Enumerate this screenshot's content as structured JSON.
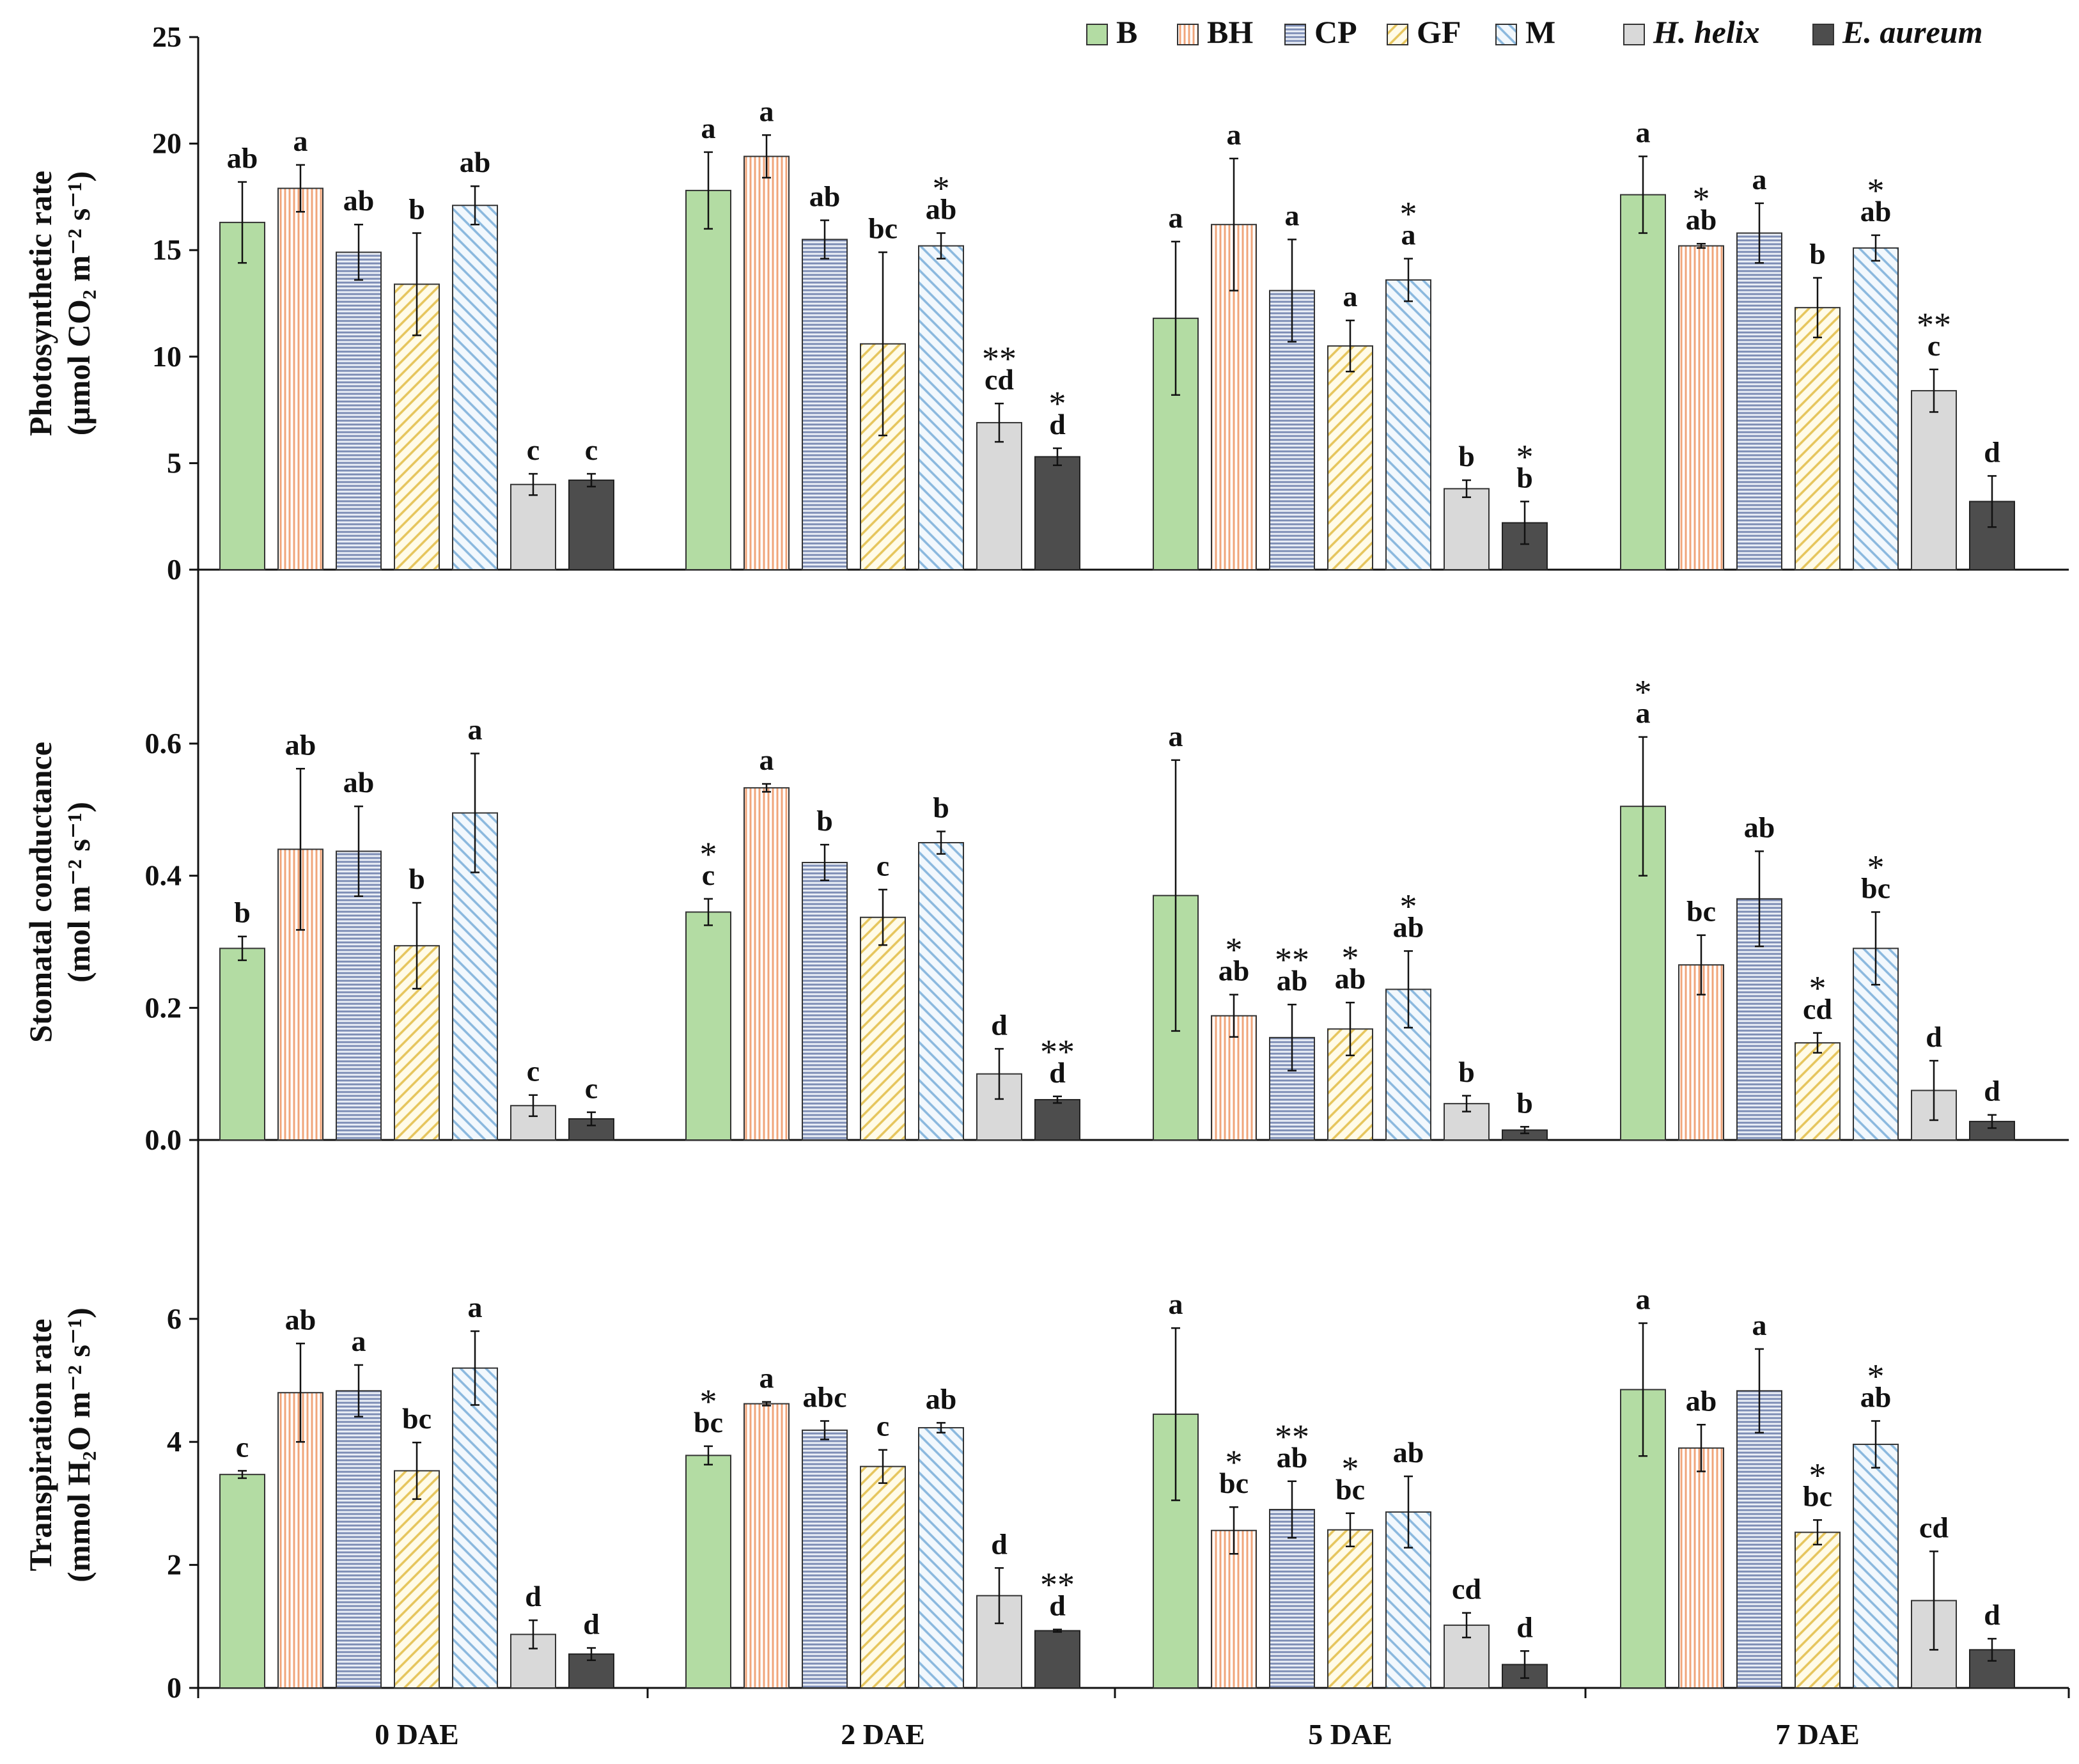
{
  "chart_data": {
    "type": "bar",
    "categories": [
      "0 DAE",
      "2 DAE",
      "5 DAE",
      "7 DAE"
    ],
    "legend": {
      "position": "top-right",
      "entries": [
        {
          "key": "B",
          "label": "B",
          "italic": false
        },
        {
          "key": "BH",
          "label": "BH",
          "italic": false
        },
        {
          "key": "CP",
          "label": "CP",
          "italic": false
        },
        {
          "key": "GF",
          "label": "GF",
          "italic": false
        },
        {
          "key": "M",
          "label": "M",
          "italic": false
        },
        {
          "key": "Hh",
          "label": "H. helix",
          "italic": true
        },
        {
          "key": "Ea",
          "label": "E. aureum",
          "italic": true
        }
      ]
    },
    "series_colors": {
      "B": "#b3dca3",
      "BH": "#f7c5a6",
      "CP": "#a9b4cf",
      "GF": "#f2d98c",
      "M": "#a8cbe6",
      "Hh": "#d9d9d9",
      "Ea": "#4d4d4d"
    },
    "panels": [
      {
        "name": "photosynthetic",
        "ylabel_line1": "Photosynthetic rate",
        "ylabel_line2": "(μmol CO₂ m⁻² s⁻¹)",
        "ylim": [
          0,
          25
        ],
        "yticks": [
          0,
          5,
          10,
          15,
          20,
          25
        ],
        "decimals": 0,
        "series": [
          {
            "key": "B",
            "values": [
              16.3,
              17.8,
              11.8,
              17.6
            ],
            "errors": [
              1.9,
              1.8,
              3.6,
              1.8
            ],
            "letters": [
              "ab",
              "a",
              "a",
              "a"
            ],
            "stars": [
              "",
              "",
              "",
              ""
            ]
          },
          {
            "key": "BH",
            "values": [
              17.9,
              19.4,
              16.2,
              15.2
            ],
            "errors": [
              1.1,
              1.0,
              3.1,
              0.1
            ],
            "letters": [
              "a",
              "a",
              "a",
              "ab"
            ],
            "stars": [
              "",
              "",
              "",
              "*"
            ]
          },
          {
            "key": "CP",
            "values": [
              14.9,
              15.5,
              13.1,
              15.8
            ],
            "errors": [
              1.3,
              0.9,
              2.4,
              1.4
            ],
            "letters": [
              "ab",
              "ab",
              "a",
              "a"
            ],
            "stars": [
              "",
              "",
              "",
              ""
            ]
          },
          {
            "key": "GF",
            "values": [
              13.4,
              10.6,
              10.5,
              12.3
            ],
            "errors": [
              2.4,
              4.3,
              1.2,
              1.4
            ],
            "letters": [
              "b",
              "bc",
              "a",
              "b"
            ],
            "stars": [
              "",
              "",
              "",
              ""
            ]
          },
          {
            "key": "M",
            "values": [
              17.1,
              15.2,
              13.6,
              15.1
            ],
            "errors": [
              0.9,
              0.6,
              1.0,
              0.6
            ],
            "letters": [
              "ab",
              "ab",
              "a",
              "ab"
            ],
            "stars": [
              "",
              "*",
              "*",
              "*"
            ]
          },
          {
            "key": "Hh",
            "values": [
              4.0,
              6.9,
              3.8,
              8.4
            ],
            "errors": [
              0.5,
              0.9,
              0.4,
              1.0
            ],
            "letters": [
              "c",
              "cd",
              "b",
              "c"
            ],
            "stars": [
              "",
              "**",
              "",
              "**"
            ]
          },
          {
            "key": "Ea",
            "values": [
              4.2,
              5.3,
              2.2,
              3.2
            ],
            "errors": [
              0.3,
              0.4,
              1.0,
              1.2
            ],
            "letters": [
              "c",
              "d",
              "b",
              "d"
            ],
            "stars": [
              "",
              "*",
              "*",
              ""
            ]
          }
        ]
      },
      {
        "name": "stomatal",
        "ylabel_line1": "Stomatal conductance",
        "ylabel_line2": "(mol m⁻² s⁻¹)",
        "ylim": [
          0,
          0.75
        ],
        "yticks": [
          0,
          0.2,
          0.4,
          0.6
        ],
        "decimals": 1,
        "series": [
          {
            "key": "B",
            "values": [
              0.29,
              0.345,
              0.37,
              0.505
            ],
            "errors": [
              0.018,
              0.02,
              0.205,
              0.105
            ],
            "letters": [
              "b",
              "c",
              "a",
              "a"
            ],
            "stars": [
              "",
              "*",
              "",
              "*"
            ]
          },
          {
            "key": "BH",
            "values": [
              0.44,
              0.533,
              0.188,
              0.265
            ],
            "errors": [
              0.122,
              0.006,
              0.032,
              0.045
            ],
            "letters": [
              "ab",
              "a",
              "ab",
              "bc"
            ],
            "stars": [
              "",
              "",
              "*",
              ""
            ]
          },
          {
            "key": "CP",
            "values": [
              0.437,
              0.42,
              0.155,
              0.365
            ],
            "errors": [
              0.068,
              0.027,
              0.05,
              0.072
            ],
            "letters": [
              "ab",
              "b",
              "ab",
              "ab"
            ],
            "stars": [
              "",
              "",
              "**",
              ""
            ]
          },
          {
            "key": "GF",
            "values": [
              0.294,
              0.337,
              0.168,
              0.147
            ],
            "errors": [
              0.065,
              0.042,
              0.04,
              0.015
            ],
            "letters": [
              "b",
              "c",
              "ab",
              "cd"
            ],
            "stars": [
              "",
              "",
              "*",
              "*"
            ]
          },
          {
            "key": "M",
            "values": [
              0.495,
              0.45,
              0.228,
              0.29
            ],
            "errors": [
              0.09,
              0.017,
              0.058,
              0.055
            ],
            "letters": [
              "a",
              "b",
              "ab",
              "bc"
            ],
            "stars": [
              "",
              "",
              "*",
              "*"
            ]
          },
          {
            "key": "Hh",
            "values": [
              0.052,
              0.1,
              0.055,
              0.075
            ],
            "errors": [
              0.016,
              0.038,
              0.012,
              0.045
            ],
            "letters": [
              "c",
              "d",
              "b",
              "d"
            ],
            "stars": [
              "",
              "",
              "",
              ""
            ]
          },
          {
            "key": "Ea",
            "values": [
              0.032,
              0.061,
              0.015,
              0.028
            ],
            "errors": [
              0.01,
              0.005,
              0.005,
              0.01
            ],
            "letters": [
              "c",
              "d",
              "b",
              "d"
            ],
            "stars": [
              "",
              "**",
              "",
              ""
            ]
          }
        ]
      },
      {
        "name": "transpiration",
        "ylabel_line1": "Transpiration rate",
        "ylabel_line2": "(mmol H₂O m⁻² s⁻¹)",
        "ylim": [
          0,
          7.9
        ],
        "yticks": [
          0,
          2,
          4,
          6
        ],
        "decimals": 0,
        "series": [
          {
            "key": "B",
            "values": [
              3.47,
              3.78,
              4.45,
              4.85
            ],
            "errors": [
              0.06,
              0.15,
              1.4,
              1.08
            ],
            "letters": [
              "c",
              "bc",
              "a",
              "a"
            ],
            "stars": [
              "",
              "*",
              "",
              ""
            ]
          },
          {
            "key": "BH",
            "values": [
              4.8,
              4.62,
              2.56,
              3.9
            ],
            "errors": [
              0.8,
              0.03,
              0.38,
              0.38
            ],
            "letters": [
              "ab",
              "a",
              "bc",
              "ab"
            ],
            "stars": [
              "",
              "",
              "*",
              ""
            ]
          },
          {
            "key": "CP",
            "values": [
              4.83,
              4.19,
              2.9,
              4.83
            ],
            "errors": [
              0.42,
              0.15,
              0.46,
              0.68
            ],
            "letters": [
              "a",
              "abc",
              "ab",
              "a"
            ],
            "stars": [
              "",
              "",
              "**",
              ""
            ]
          },
          {
            "key": "GF",
            "values": [
              3.53,
              3.6,
              2.57,
              2.53
            ],
            "errors": [
              0.46,
              0.27,
              0.27,
              0.2
            ],
            "letters": [
              "bc",
              "c",
              "bc",
              "bc"
            ],
            "stars": [
              "",
              "",
              "*",
              "*"
            ]
          },
          {
            "key": "M",
            "values": [
              5.2,
              4.23,
              2.86,
              3.96
            ],
            "errors": [
              0.6,
              0.08,
              0.58,
              0.38
            ],
            "letters": [
              "a",
              "ab",
              "ab",
              "ab"
            ],
            "stars": [
              "",
              "",
              "",
              "*"
            ]
          },
          {
            "key": "Hh",
            "values": [
              0.87,
              1.5,
              1.02,
              1.42
            ],
            "errors": [
              0.23,
              0.45,
              0.2,
              0.8
            ],
            "letters": [
              "d",
              "d",
              "cd",
              "cd"
            ],
            "stars": [
              "",
              "",
              "",
              ""
            ]
          },
          {
            "key": "Ea",
            "values": [
              0.55,
              0.93,
              0.38,
              0.62
            ],
            "errors": [
              0.1,
              0.02,
              0.22,
              0.18
            ],
            "letters": [
              "d",
              "d",
              "d",
              "d"
            ],
            "stars": [
              "",
              "**",
              "",
              ""
            ]
          }
        ]
      }
    ]
  }
}
